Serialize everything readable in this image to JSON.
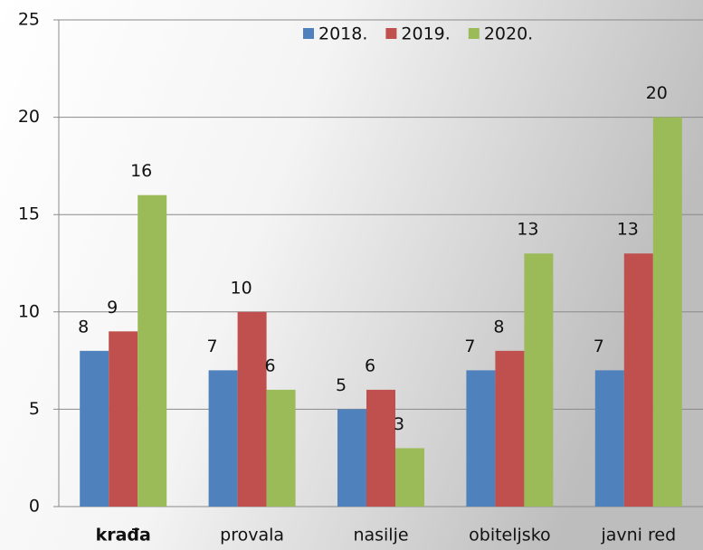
{
  "chart_data": {
    "type": "bar",
    "categories": [
      "krađa",
      "provala",
      "nasilje",
      "obiteljsko",
      "javni red"
    ],
    "series": [
      {
        "name": "2018.",
        "color": "#4f81bd",
        "values": [
          8,
          7,
          5,
          7,
          7
        ]
      },
      {
        "name": "2019.",
        "color": "#c0504d",
        "values": [
          9,
          10,
          6,
          8,
          13
        ]
      },
      {
        "name": "2020.",
        "color": "#9bbb59",
        "values": [
          16,
          6,
          3,
          13,
          20
        ]
      }
    ],
    "ylim": [
      0,
      25
    ],
    "yticks": [
      0,
      5,
      10,
      15,
      20,
      25
    ],
    "grid": true,
    "legend": "top"
  }
}
